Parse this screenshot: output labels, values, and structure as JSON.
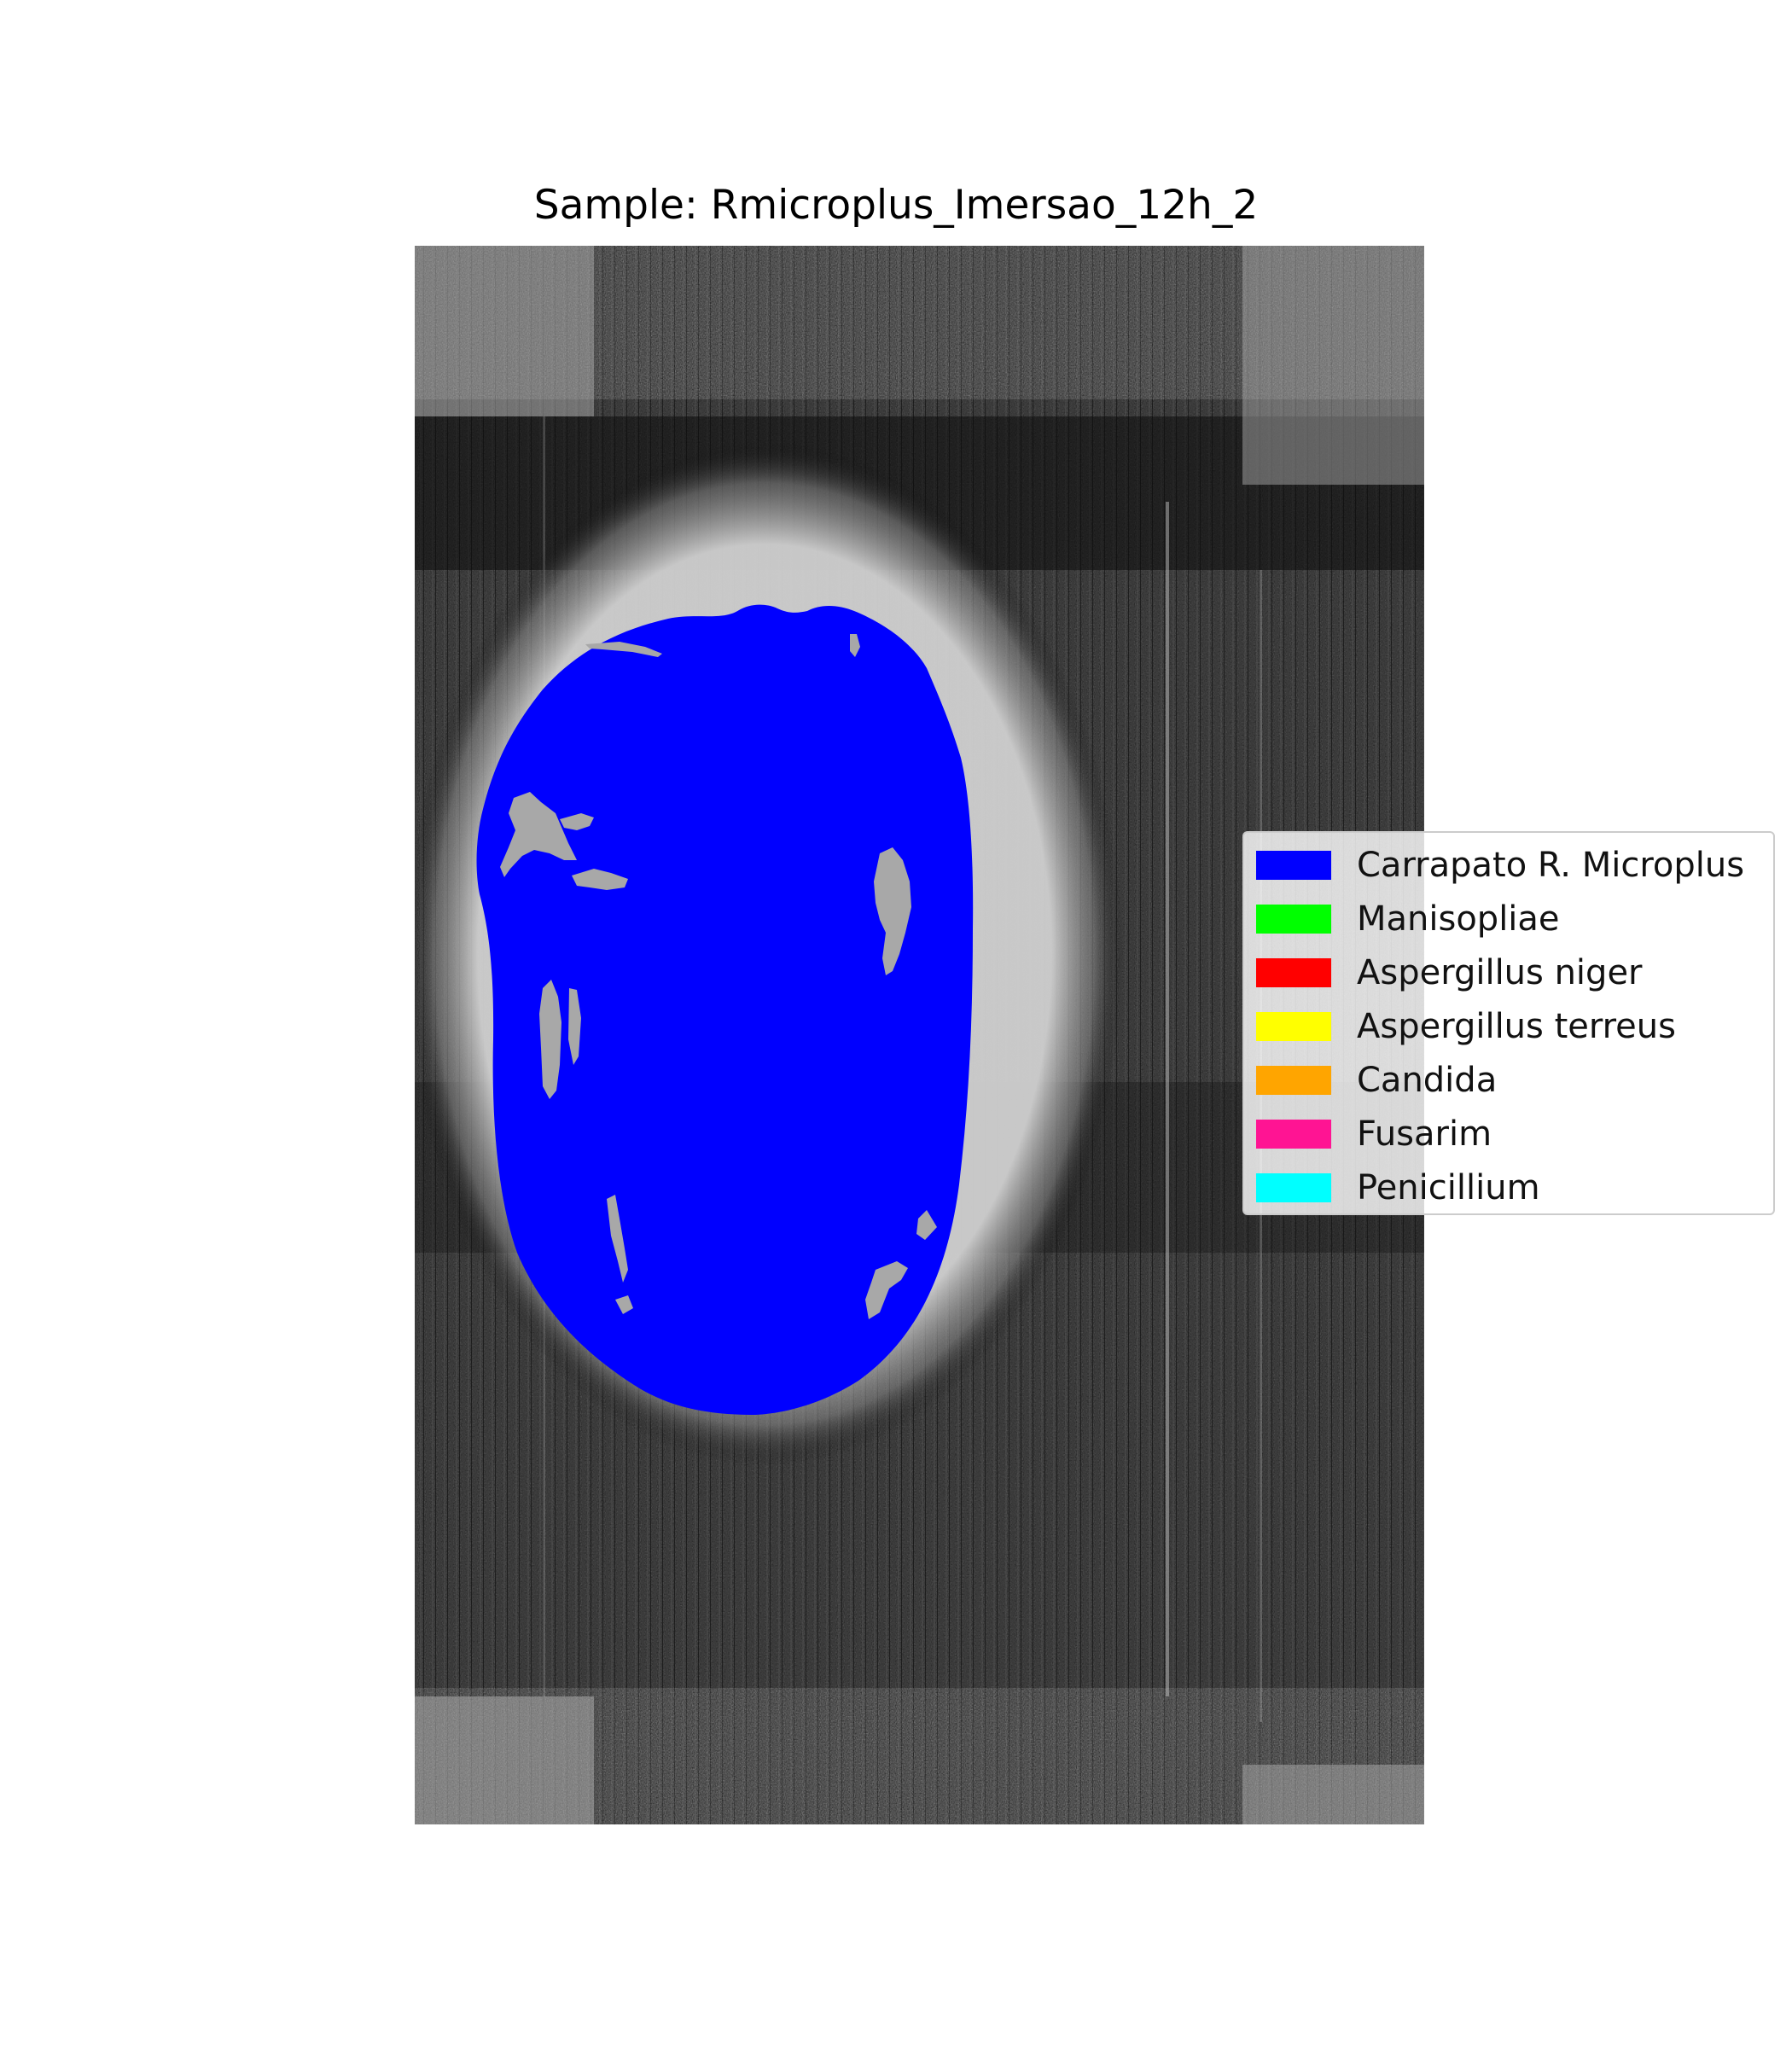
{
  "title": "Sample: Rmicroplus_Imersao_12h_2",
  "image": {
    "description_colors": {
      "background_dark": "#1a1a1a",
      "background_light": "#bdbdbd",
      "tick_mask": "#0000ff",
      "uncovered_patch": "#a8a8a8"
    }
  },
  "legend": {
    "entries": [
      {
        "label": "Carrapato R. Microplus",
        "color": "#0000ff"
      },
      {
        "label": "Manisopliae",
        "color": "#00ff00"
      },
      {
        "label": "Aspergillus niger",
        "color": "#ff0000"
      },
      {
        "label": "Aspergillus terreus",
        "color": "#ffff00"
      },
      {
        "label": "Candida",
        "color": "#ffa500"
      },
      {
        "label": "Fusarim",
        "color": "#ff1493"
      },
      {
        "label": "Penicillium",
        "color": "#00ffff"
      }
    ]
  }
}
